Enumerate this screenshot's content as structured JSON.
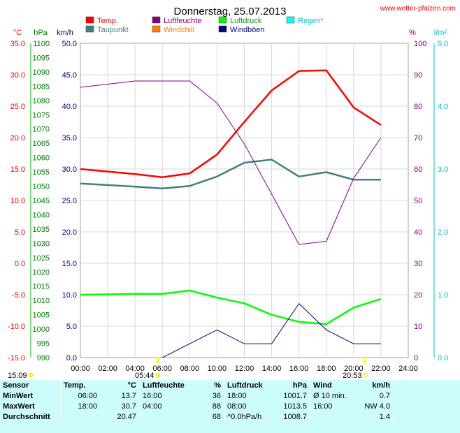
{
  "header": {
    "title": "Donnerstag, 25.07.2013",
    "source_label": "www.wetter-pfalzen.com"
  },
  "axes": {
    "unit_temp": "°C",
    "unit_pressure": "hPa",
    "unit_wind": "km/h",
    "unit_humidity": "%",
    "unit_rain": "l/m²"
  },
  "legend": [
    {
      "label": "Temp.",
      "color": "#ff0000"
    },
    {
      "label": "Luftfeuchte",
      "color": "#800080"
    },
    {
      "label": "Luftdruck",
      "color": "#00ff00"
    },
    {
      "label": "Regen*",
      "color": "#00ffff"
    },
    {
      "label": "Taupunkt",
      "color": "#408080"
    },
    {
      "label": "Windchill",
      "color": "#ff8000"
    },
    {
      "label": "Windböen",
      "color": "#000080"
    }
  ],
  "sun": {
    "sunrise": "05:44",
    "sunset": "20:53",
    "daylight": "15:09"
  },
  "chart_data": {
    "type": "line",
    "x_ticks": [
      "00:00",
      "02:00",
      "04:00",
      "06:00",
      "08:00",
      "10:00",
      "12:00",
      "14:00",
      "16:00",
      "18:00",
      "20:00",
      "22:00",
      "24:00"
    ],
    "hours": [
      0,
      4,
      6,
      8,
      10,
      12,
      14,
      16,
      18,
      20,
      22
    ],
    "temp_axis": {
      "ticks": [
        "35.0",
        "30.0",
        "25.0",
        "20.0",
        "15.0",
        "10.0",
        "5.0",
        "0.0",
        "-5.0",
        "-10.0",
        "-15.0"
      ],
      "ylim": [
        -15,
        35
      ],
      "color": "#ff0000"
    },
    "pressure_axis": {
      "ticks": [
        "1100",
        "1095",
        "1090",
        "1085",
        "1080",
        "1075",
        "1070",
        "1065",
        "1060",
        "1055",
        "1050",
        "1045",
        "1040",
        "1035",
        "1030",
        "1025",
        "1020",
        "1015",
        "1010",
        "1005",
        "1000",
        "995",
        "990"
      ],
      "ylim": [
        990,
        1100
      ],
      "color": "#008000"
    },
    "wind_axis": {
      "ticks": [
        "50.0",
        "45.0",
        "40.0",
        "35.0",
        "30.0",
        "25.0",
        "20.0",
        "15.0",
        "10.0",
        "5.0",
        "0.0"
      ],
      "ylim": [
        0,
        50
      ],
      "color": "#000080"
    },
    "humidity_axis": {
      "ticks": [
        "100",
        "90",
        "80",
        "70",
        "60",
        "50",
        "40",
        "30",
        "20",
        "10",
        "0"
      ],
      "ylim": [
        0,
        100
      ],
      "color": "#800080"
    },
    "rain_axis": {
      "ticks": [
        "5.0",
        "4.0",
        "3.0",
        "2.0",
        "1.0",
        "0.0"
      ],
      "ylim": [
        0,
        5
      ],
      "color": "#00c0c0"
    },
    "series": [
      {
        "name": "Temp.",
        "axis": "temp",
        "color": "#ff0000",
        "points": [
          [
            0,
            15.0
          ],
          [
            4,
            14.2
          ],
          [
            6,
            13.7
          ],
          [
            8,
            14.3
          ],
          [
            10,
            17.3
          ],
          [
            12,
            22.5
          ],
          [
            14,
            27.5
          ],
          [
            16,
            30.6
          ],
          [
            18,
            30.7
          ],
          [
            20,
            24.8
          ],
          [
            22,
            22.0
          ]
        ]
      },
      {
        "name": "Taupunkt",
        "axis": "temp",
        "color": "#408080",
        "points": [
          [
            0,
            12.7
          ],
          [
            4,
            12.2
          ],
          [
            6,
            11.9
          ],
          [
            8,
            12.3
          ],
          [
            10,
            13.8
          ],
          [
            12,
            16.0
          ],
          [
            14,
            16.5
          ],
          [
            16,
            13.8
          ],
          [
            18,
            14.5
          ],
          [
            20,
            13.3
          ],
          [
            22,
            13.3
          ]
        ]
      },
      {
        "name": "Luftfeuchte",
        "axis": "humidity",
        "color": "#800080",
        "points": [
          [
            0,
            86
          ],
          [
            4,
            88
          ],
          [
            6,
            88
          ],
          [
            8,
            88
          ],
          [
            10,
            81
          ],
          [
            12,
            68
          ],
          [
            14,
            52
          ],
          [
            16,
            36
          ],
          [
            18,
            37
          ],
          [
            20,
            57
          ],
          [
            22,
            70
          ]
        ]
      },
      {
        "name": "Luftdruck",
        "axis": "pressure",
        "color": "#00ff00",
        "points": [
          [
            0,
            1012.0
          ],
          [
            4,
            1012.3
          ],
          [
            6,
            1012.3
          ],
          [
            8,
            1013.5
          ],
          [
            10,
            1011.0
          ],
          [
            12,
            1009.0
          ],
          [
            14,
            1005.0
          ],
          [
            16,
            1002.5
          ],
          [
            18,
            1001.7
          ],
          [
            20,
            1007.5
          ],
          [
            22,
            1010.5
          ]
        ]
      },
      {
        "name": "Windböen",
        "axis": "wind",
        "color": "#000080",
        "points": [
          [
            6,
            0
          ],
          [
            8,
            2.2
          ],
          [
            10,
            4.4
          ],
          [
            12,
            2.2
          ],
          [
            14,
            2.2
          ],
          [
            16,
            8.6
          ],
          [
            18,
            4.4
          ],
          [
            20,
            2.2
          ],
          [
            22,
            2.2
          ]
        ]
      }
    ]
  },
  "summary": {
    "headers": {
      "sensor": "Sensor",
      "temp": "Temp.",
      "temp_unit": "°C",
      "hum": "Luftfeuchte",
      "hum_unit": "%",
      "pres": "Luftdruck",
      "pres_unit": "hPa",
      "wind": "Wind",
      "wind_unit": "km/h"
    },
    "rows": [
      {
        "label": "MinWert",
        "t_time": "06:00",
        "t_val": "13.7",
        "h_time": "16:00",
        "h_val": "36",
        "p_time": "18:00",
        "p_val": "1001.7",
        "w_time": "Ø 10 min.",
        "w_val": "0.7"
      },
      {
        "label": "MaxWert",
        "t_time": "18:00",
        "t_val": "30.7",
        "h_time": "04:00",
        "h_val": "88",
        "p_time": "08:00",
        "p_val": "1013.5",
        "w_time": "16:00",
        "w_val": "NW 4.0"
      },
      {
        "label": "Durchschnitt",
        "t_time": "",
        "t_val": "20.47",
        "h_time": "",
        "h_val": "68",
        "p_time": "^0.0hPa/h",
        "p_val": "1008.7",
        "w_time": "",
        "w_val": "1.4"
      }
    ]
  }
}
